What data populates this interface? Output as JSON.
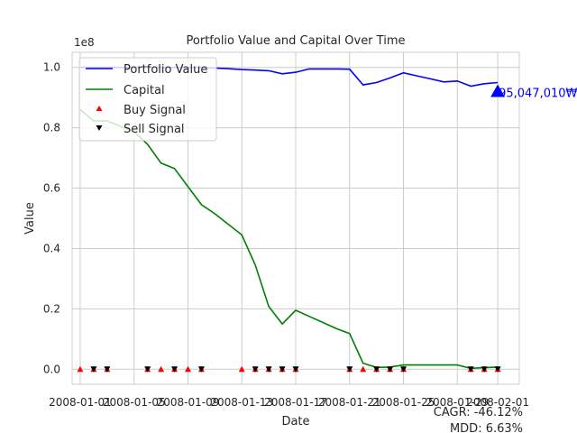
{
  "chart_data": {
    "type": "line",
    "title": "Portfolio Value and Capital Over Time",
    "xlabel": "Date",
    "ylabel": "Value",
    "y_scale_label": "1e8",
    "ylim": [
      -5000000,
      105000000
    ],
    "xlim": [
      -0.6,
      32.6
    ],
    "x_tick_labels": [
      "2008-01-01",
      "2008-01-05",
      "2008-01-09",
      "2008-01-13",
      "2008-01-17",
      "2008-01-21",
      "2008-01-25",
      "2008-01-29",
      "2008-02-01"
    ],
    "x_tick_positions": [
      0,
      4,
      8,
      12,
      16,
      20,
      24,
      28,
      31
    ],
    "y_ticks": [
      0,
      20000000,
      40000000,
      60000000,
      80000000,
      100000000
    ],
    "y_tick_labels": [
      "0.0",
      "0.2",
      "0.4",
      "0.6",
      "0.8",
      "1.0"
    ],
    "grid": true,
    "legend_position": "top-left",
    "series": [
      {
        "name": "Portfolio Value",
        "color": "#0000ff",
        "x": [
          0,
          1,
          2,
          3,
          4,
          5,
          6,
          7,
          8,
          9,
          10,
          11,
          12,
          13,
          14,
          15,
          16,
          17,
          18,
          19,
          20,
          21,
          22,
          23,
          24,
          25,
          26,
          27,
          28,
          29,
          30,
          31
        ],
        "values": [
          100000000,
          100000000,
          100000000,
          100000000,
          100000000,
          100000000,
          100000000,
          100000000,
          100000000,
          100000000,
          99800000,
          99600000,
          99300000,
          99100000,
          98900000,
          97900000,
          98400000,
          99500000,
          99500000,
          99500000,
          99400000,
          94200000,
          95000000,
          96500000,
          98200000,
          97200000,
          96200000,
          95200000,
          95500000,
          93800000,
          94600000,
          95000000
        ]
      },
      {
        "name": "Capital",
        "color": "#008000",
        "x": [
          0,
          1,
          2,
          3,
          4,
          5,
          6,
          7,
          8,
          9,
          10,
          11,
          12,
          13,
          14,
          15,
          16,
          17,
          18,
          19,
          20,
          21,
          22,
          23,
          24,
          25,
          26,
          27,
          28,
          29,
          30,
          31
        ],
        "values": [
          86000000,
          82300000,
          82300000,
          80500000,
          78700000,
          74500000,
          68300000,
          66500000,
          60500000,
          54500000,
          51500000,
          48000000,
          44500000,
          34500000,
          20800000,
          15000000,
          19500000,
          17500000,
          15500000,
          13500000,
          11800000,
          2000000,
          600000,
          700000,
          1400000,
          1400000,
          1400000,
          1400000,
          1400000,
          300000,
          500000,
          700000
        ]
      }
    ],
    "buy_signals": {
      "name": "Buy Signal",
      "color": "#ff0000",
      "x": [
        0,
        1,
        2,
        5,
        6,
        7,
        8,
        9,
        12,
        13,
        14,
        15,
        16,
        20,
        21,
        22,
        23,
        24,
        29,
        30,
        31
      ]
    },
    "sell_signals": {
      "name": "Sell Signal",
      "color": "#000000",
      "x": [
        1,
        2,
        5,
        7,
        9,
        13,
        14,
        15,
        16,
        20,
        22,
        23,
        24,
        29,
        30,
        31
      ]
    },
    "end_marker": {
      "x": 31,
      "value": 92000000,
      "label": "95,047,010₩",
      "color": "#0000ff"
    },
    "stats": {
      "cagr": "CAGR: -46.12%",
      "mdd": "MDD: 6.63%"
    }
  }
}
